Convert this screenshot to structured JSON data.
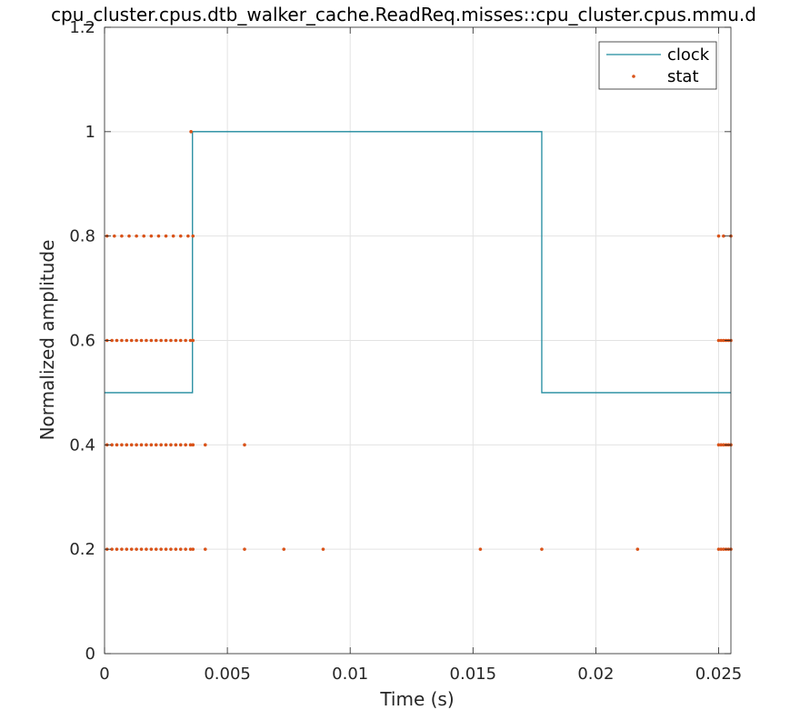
{
  "chart_data": {
    "type": "line",
    "title": "cpu_cluster.cpus.dtb_walker_cache.ReadReq.misses::cpu_cluster.cpus.mmu.d",
    "xlabel": "Time (s)",
    "ylabel": "Normalized amplitude",
    "xlim": [
      0,
      0.0255
    ],
    "ylim": [
      0,
      1.2
    ],
    "x_ticks": [
      0,
      0.005,
      0.01,
      0.015,
      0.02,
      0.025
    ],
    "x_tick_labels": [
      "0",
      "0.005",
      "0.01",
      "0.015",
      "0.02",
      "0.025"
    ],
    "y_ticks": [
      0,
      0.2,
      0.4,
      0.6,
      0.8,
      1,
      1.2
    ],
    "y_tick_labels": [
      "0",
      "0.2",
      "0.4",
      "0.6",
      "0.8",
      "1",
      "1.2"
    ],
    "grid": true,
    "legend_position": "top-right",
    "series": [
      {
        "name": "clock",
        "kind": "line",
        "color": "#1f8a9e",
        "x": [
          0,
          0.00358,
          0.00358,
          0.0178,
          0.0178,
          0.0255
        ],
        "y": [
          0.5,
          0.5,
          1.0,
          1.0,
          0.5,
          0.5
        ]
      },
      {
        "name": "stat",
        "kind": "points",
        "color": "#d95319",
        "points": [
          [
            0.00352,
            1.0
          ],
          [
            0.0001,
            0.8
          ],
          [
            0.0004,
            0.8
          ],
          [
            0.0007,
            0.8
          ],
          [
            0.001,
            0.8
          ],
          [
            0.0013,
            0.8
          ],
          [
            0.0016,
            0.8
          ],
          [
            0.0019,
            0.8
          ],
          [
            0.0022,
            0.8
          ],
          [
            0.0025,
            0.8
          ],
          [
            0.0028,
            0.8
          ],
          [
            0.0031,
            0.8
          ],
          [
            0.0034,
            0.8
          ],
          [
            0.0036,
            0.8
          ],
          [
            0.025,
            0.8
          ],
          [
            0.0252,
            0.8
          ],
          [
            0.0255,
            0.8
          ],
          [
            0.0001,
            0.6
          ],
          [
            0.0003,
            0.6
          ],
          [
            0.0005,
            0.6
          ],
          [
            0.0007,
            0.6
          ],
          [
            0.0009,
            0.6
          ],
          [
            0.0011,
            0.6
          ],
          [
            0.0013,
            0.6
          ],
          [
            0.0015,
            0.6
          ],
          [
            0.0017,
            0.6
          ],
          [
            0.0019,
            0.6
          ],
          [
            0.0021,
            0.6
          ],
          [
            0.0023,
            0.6
          ],
          [
            0.0025,
            0.6
          ],
          [
            0.0027,
            0.6
          ],
          [
            0.0029,
            0.6
          ],
          [
            0.0031,
            0.6
          ],
          [
            0.0033,
            0.6
          ],
          [
            0.0035,
            0.6
          ],
          [
            0.0036,
            0.6
          ],
          [
            0.025,
            0.6
          ],
          [
            0.0251,
            0.6
          ],
          [
            0.0252,
            0.6
          ],
          [
            0.0253,
            0.6
          ],
          [
            0.0254,
            0.6
          ],
          [
            0.0255,
            0.6
          ],
          [
            0.0001,
            0.4
          ],
          [
            0.0003,
            0.4
          ],
          [
            0.0005,
            0.4
          ],
          [
            0.0007,
            0.4
          ],
          [
            0.0009,
            0.4
          ],
          [
            0.0011,
            0.4
          ],
          [
            0.0013,
            0.4
          ],
          [
            0.0015,
            0.4
          ],
          [
            0.0017,
            0.4
          ],
          [
            0.0019,
            0.4
          ],
          [
            0.0021,
            0.4
          ],
          [
            0.0023,
            0.4
          ],
          [
            0.0025,
            0.4
          ],
          [
            0.0027,
            0.4
          ],
          [
            0.0029,
            0.4
          ],
          [
            0.0031,
            0.4
          ],
          [
            0.0033,
            0.4
          ],
          [
            0.0035,
            0.4
          ],
          [
            0.0036,
            0.4
          ],
          [
            0.0041,
            0.4
          ],
          [
            0.0057,
            0.4
          ],
          [
            0.025,
            0.4
          ],
          [
            0.0251,
            0.4
          ],
          [
            0.0252,
            0.4
          ],
          [
            0.0253,
            0.4
          ],
          [
            0.0254,
            0.4
          ],
          [
            0.0255,
            0.4
          ],
          [
            0.0001,
            0.2
          ],
          [
            0.0003,
            0.2
          ],
          [
            0.0005,
            0.2
          ],
          [
            0.0007,
            0.2
          ],
          [
            0.0009,
            0.2
          ],
          [
            0.0011,
            0.2
          ],
          [
            0.0013,
            0.2
          ],
          [
            0.0015,
            0.2
          ],
          [
            0.0017,
            0.2
          ],
          [
            0.0019,
            0.2
          ],
          [
            0.0021,
            0.2
          ],
          [
            0.0023,
            0.2
          ],
          [
            0.0025,
            0.2
          ],
          [
            0.0027,
            0.2
          ],
          [
            0.0029,
            0.2
          ],
          [
            0.0031,
            0.2
          ],
          [
            0.0033,
            0.2
          ],
          [
            0.0035,
            0.2
          ],
          [
            0.0036,
            0.2
          ],
          [
            0.0041,
            0.2
          ],
          [
            0.0057,
            0.2
          ],
          [
            0.0073,
            0.2
          ],
          [
            0.0089,
            0.2
          ],
          [
            0.0153,
            0.2
          ],
          [
            0.0178,
            0.2
          ],
          [
            0.0217,
            0.2
          ],
          [
            0.025,
            0.2
          ],
          [
            0.0251,
            0.2
          ],
          [
            0.0252,
            0.2
          ],
          [
            0.0253,
            0.2
          ],
          [
            0.0254,
            0.2
          ],
          [
            0.0255,
            0.2
          ]
        ]
      }
    ]
  }
}
